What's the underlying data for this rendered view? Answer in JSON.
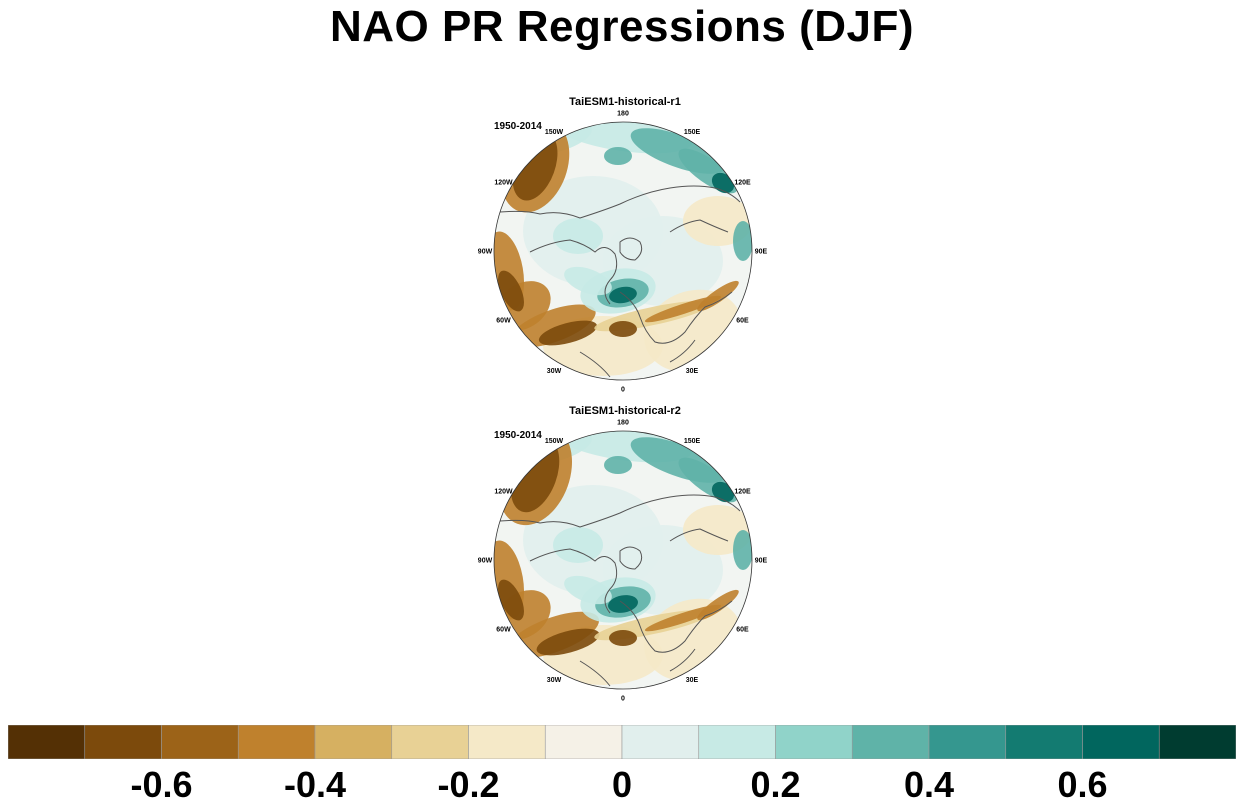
{
  "figure": {
    "title": "NAO PR Regressions (DJF)"
  },
  "panels": [
    {
      "title": "TaiESM1-historical-r1",
      "period": "1950-2014",
      "lon_labels": [
        "180",
        "150E",
        "120E",
        "90E",
        "60E",
        "30E",
        "0",
        "30W",
        "60W",
        "90W",
        "120W",
        "150W"
      ]
    },
    {
      "title": "TaiESM1-historical-r2",
      "period": "1950-2014",
      "lon_labels": [
        "180",
        "150E",
        "120E",
        "90E",
        "60E",
        "30E",
        "0",
        "30W",
        "60W",
        "90W",
        "120W",
        "150W"
      ]
    }
  ],
  "colorbar": {
    "tick_labels": [
      "-0.6",
      "-0.4",
      "-0.2",
      "0",
      "0.2",
      "0.4",
      "0.6"
    ],
    "tick_values": [
      -0.6,
      -0.4,
      -0.2,
      0,
      0.2,
      0.4,
      0.6
    ],
    "min": -0.8,
    "max": 0.8,
    "colors": [
      "#543005",
      "#7c4a0c",
      "#9c6318",
      "#bf812d",
      "#d6b061",
      "#e8d195",
      "#f5e9c8",
      "#f5f1e7",
      "#e1efed",
      "#c7eae5",
      "#90d3c9",
      "#5fb3a8",
      "#35978f",
      "#137b71",
      "#01665e",
      "#003c30"
    ]
  },
  "chart_data": {
    "type": "heatmap",
    "title": "NAO PR Regressions (DJF)",
    "projection": "north polar stereographic",
    "variable": "precipitation regression on NAO",
    "season": "DJF",
    "colorbar_range": [
      -0.8,
      0.8
    ],
    "colorbar_ticks": [
      -0.6,
      -0.4,
      -0.2,
      0,
      0.2,
      0.4,
      0.6
    ],
    "panels": [
      {
        "name": "TaiESM1-historical-r1",
        "period": "1950-2014"
      },
      {
        "name": "TaiESM1-historical-r2",
        "period": "1950-2014"
      }
    ],
    "features": [
      {
        "region": "Gulf of Alaska / Pacific NW",
        "sign": "negative",
        "panel": "both"
      },
      {
        "region": "North Atlantic storm track (mid-latitudes)",
        "sign": "negative",
        "panel": "both"
      },
      {
        "region": "Northern Europe / Scandinavia",
        "sign": "positive",
        "panel": "both"
      },
      {
        "region": "North Pacific near Japan / Kamchatka",
        "sign": "positive",
        "panel": "both"
      },
      {
        "region": "Mediterranean / southern Europe band",
        "sign": "negative",
        "panel": "both"
      }
    ]
  }
}
